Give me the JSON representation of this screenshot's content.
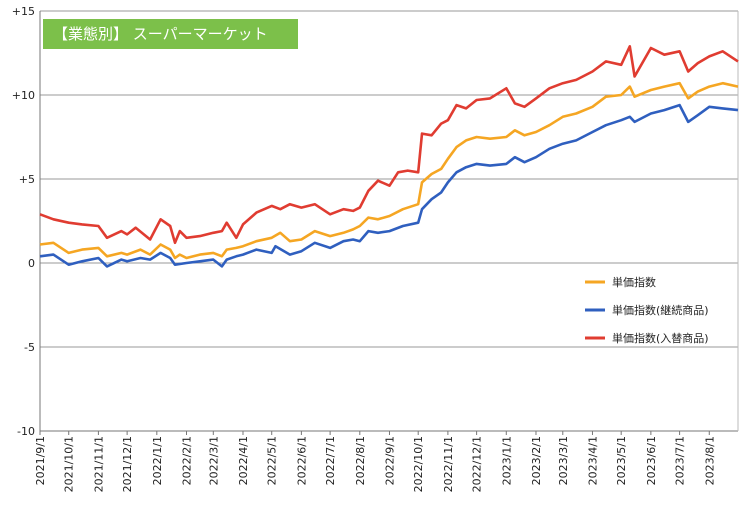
{
  "chart_data": {
    "type": "line",
    "title": "【業態別】 スーパーマーケット",
    "title_bg_color": "#7cc04a",
    "ylim": [
      -10,
      15
    ],
    "y_ticks": [
      "+15",
      "+10",
      "+5",
      "0",
      "-5",
      "-10"
    ],
    "y_tick_values": [
      15,
      10,
      5,
      0,
      -5,
      -10
    ],
    "x_ticks": [
      "2021/9/1",
      "2021/10/1",
      "2021/11/1",
      "2021/12/1",
      "2022/1/1",
      "2022/2/1",
      "2022/3/1",
      "2022/4/1",
      "2022/5/1",
      "2022/6/1",
      "2022/7/1",
      "2022/8/1",
      "2022/9/1",
      "2022/10/1",
      "2022/11/1",
      "2022/12/1",
      "2023/1/1",
      "2023/2/1",
      "2023/3/1",
      "2023/4/1",
      "2023/5/1",
      "2023/6/1",
      "2023/7/1",
      "2023/8/1"
    ],
    "x_range": [
      "2021-09-01",
      "2023-08-31"
    ],
    "grid": "horizontal",
    "legend_position": "bottom-right",
    "series": [
      {
        "name": "単価指数",
        "color": "#f5a623",
        "points": [
          [
            "2021-09-01",
            1.1
          ],
          [
            "2021-09-15",
            1.2
          ],
          [
            "2021-10-01",
            0.6
          ],
          [
            "2021-10-15",
            0.8
          ],
          [
            "2021-11-01",
            0.9
          ],
          [
            "2021-11-10",
            0.4
          ],
          [
            "2021-11-25",
            0.6
          ],
          [
            "2021-12-01",
            0.5
          ],
          [
            "2021-12-15",
            0.8
          ],
          [
            "2021-12-25",
            0.5
          ],
          [
            "2022-01-05",
            1.1
          ],
          [
            "2022-01-15",
            0.8
          ],
          [
            "2022-01-20",
            0.3
          ],
          [
            "2022-01-25",
            0.5
          ],
          [
            "2022-02-01",
            0.3
          ],
          [
            "2022-02-15",
            0.5
          ],
          [
            "2022-03-01",
            0.6
          ],
          [
            "2022-03-10",
            0.4
          ],
          [
            "2022-03-15",
            0.8
          ],
          [
            "2022-03-25",
            0.9
          ],
          [
            "2022-04-01",
            1.0
          ],
          [
            "2022-04-15",
            1.3
          ],
          [
            "2022-05-01",
            1.5
          ],
          [
            "2022-05-10",
            1.8
          ],
          [
            "2022-05-20",
            1.3
          ],
          [
            "2022-06-01",
            1.4
          ],
          [
            "2022-06-15",
            1.9
          ],
          [
            "2022-07-01",
            1.6
          ],
          [
            "2022-07-15",
            1.8
          ],
          [
            "2022-07-25",
            2.0
          ],
          [
            "2022-08-01",
            2.2
          ],
          [
            "2022-08-10",
            2.7
          ],
          [
            "2022-08-20",
            2.6
          ],
          [
            "2022-09-01",
            2.8
          ],
          [
            "2022-09-15",
            3.2
          ],
          [
            "2022-10-01",
            3.5
          ],
          [
            "2022-10-05",
            4.8
          ],
          [
            "2022-10-15",
            5.3
          ],
          [
            "2022-10-25",
            5.6
          ],
          [
            "2022-11-01",
            6.2
          ],
          [
            "2022-11-10",
            6.9
          ],
          [
            "2022-11-20",
            7.3
          ],
          [
            "2022-12-01",
            7.5
          ],
          [
            "2022-12-15",
            7.4
          ],
          [
            "2023-01-01",
            7.5
          ],
          [
            "2023-01-10",
            7.9
          ],
          [
            "2023-01-20",
            7.6
          ],
          [
            "2023-02-01",
            7.8
          ],
          [
            "2023-02-15",
            8.2
          ],
          [
            "2023-03-01",
            8.7
          ],
          [
            "2023-03-15",
            8.9
          ],
          [
            "2023-04-01",
            9.3
          ],
          [
            "2023-04-15",
            9.9
          ],
          [
            "2023-05-01",
            10.0
          ],
          [
            "2023-05-10",
            10.5
          ],
          [
            "2023-05-15",
            9.9
          ],
          [
            "2023-06-01",
            10.3
          ],
          [
            "2023-06-15",
            10.5
          ],
          [
            "2023-07-01",
            10.7
          ],
          [
            "2023-07-10",
            9.8
          ],
          [
            "2023-07-20",
            10.2
          ],
          [
            "2023-08-01",
            10.5
          ],
          [
            "2023-08-15",
            10.7
          ],
          [
            "2023-08-31",
            10.5
          ]
        ]
      },
      {
        "name": "単価指数(継続商品)",
        "color": "#2f5fbf",
        "points": [
          [
            "2021-09-01",
            0.4
          ],
          [
            "2021-09-15",
            0.5
          ],
          [
            "2021-10-01",
            -0.1
          ],
          [
            "2021-10-15",
            0.1
          ],
          [
            "2021-11-01",
            0.3
          ],
          [
            "2021-11-10",
            -0.2
          ],
          [
            "2021-11-25",
            0.2
          ],
          [
            "2021-12-01",
            0.1
          ],
          [
            "2021-12-15",
            0.3
          ],
          [
            "2021-12-25",
            0.2
          ],
          [
            "2022-01-05",
            0.6
          ],
          [
            "2022-01-15",
            0.3
          ],
          [
            "2022-01-20",
            -0.1
          ],
          [
            "2022-02-01",
            0.0
          ],
          [
            "2022-02-15",
            0.1
          ],
          [
            "2022-03-01",
            0.2
          ],
          [
            "2022-03-10",
            -0.2
          ],
          [
            "2022-03-15",
            0.2
          ],
          [
            "2022-03-25",
            0.4
          ],
          [
            "2022-04-01",
            0.5
          ],
          [
            "2022-04-15",
            0.8
          ],
          [
            "2022-05-01",
            0.6
          ],
          [
            "2022-05-05",
            1.0
          ],
          [
            "2022-05-20",
            0.5
          ],
          [
            "2022-06-01",
            0.7
          ],
          [
            "2022-06-15",
            1.2
          ],
          [
            "2022-07-01",
            0.9
          ],
          [
            "2022-07-15",
            1.3
          ],
          [
            "2022-07-25",
            1.4
          ],
          [
            "2022-08-01",
            1.3
          ],
          [
            "2022-08-10",
            1.9
          ],
          [
            "2022-08-20",
            1.8
          ],
          [
            "2022-09-01",
            1.9
          ],
          [
            "2022-09-15",
            2.2
          ],
          [
            "2022-10-01",
            2.4
          ],
          [
            "2022-10-05",
            3.2
          ],
          [
            "2022-10-15",
            3.8
          ],
          [
            "2022-10-25",
            4.2
          ],
          [
            "2022-11-01",
            4.8
          ],
          [
            "2022-11-10",
            5.4
          ],
          [
            "2022-11-20",
            5.7
          ],
          [
            "2022-12-01",
            5.9
          ],
          [
            "2022-12-15",
            5.8
          ],
          [
            "2023-01-01",
            5.9
          ],
          [
            "2023-01-10",
            6.3
          ],
          [
            "2023-01-20",
            6.0
          ],
          [
            "2023-02-01",
            6.3
          ],
          [
            "2023-02-15",
            6.8
          ],
          [
            "2023-03-01",
            7.1
          ],
          [
            "2023-03-15",
            7.3
          ],
          [
            "2023-04-01",
            7.8
          ],
          [
            "2023-04-15",
            8.2
          ],
          [
            "2023-05-01",
            8.5
          ],
          [
            "2023-05-10",
            8.7
          ],
          [
            "2023-05-15",
            8.4
          ],
          [
            "2023-06-01",
            8.9
          ],
          [
            "2023-06-15",
            9.1
          ],
          [
            "2023-07-01",
            9.4
          ],
          [
            "2023-07-10",
            8.4
          ],
          [
            "2023-07-20",
            8.8
          ],
          [
            "2023-08-01",
            9.3
          ],
          [
            "2023-08-15",
            9.2
          ],
          [
            "2023-08-31",
            9.1
          ]
        ]
      },
      {
        "name": "単価指数(入替商品)",
        "color": "#e03c31",
        "points": [
          [
            "2021-09-01",
            2.9
          ],
          [
            "2021-09-15",
            2.6
          ],
          [
            "2021-10-01",
            2.4
          ],
          [
            "2021-10-15",
            2.3
          ],
          [
            "2021-11-01",
            2.2
          ],
          [
            "2021-11-10",
            1.5
          ],
          [
            "2021-11-25",
            1.9
          ],
          [
            "2021-12-01",
            1.7
          ],
          [
            "2021-12-10",
            2.1
          ],
          [
            "2021-12-25",
            1.4
          ],
          [
            "2022-01-05",
            2.6
          ],
          [
            "2022-01-15",
            2.2
          ],
          [
            "2022-01-20",
            1.2
          ],
          [
            "2022-01-25",
            1.9
          ],
          [
            "2022-02-01",
            1.5
          ],
          [
            "2022-02-15",
            1.6
          ],
          [
            "2022-03-01",
            1.8
          ],
          [
            "2022-03-10",
            1.9
          ],
          [
            "2022-03-15",
            2.4
          ],
          [
            "2022-03-25",
            1.5
          ],
          [
            "2022-04-01",
            2.3
          ],
          [
            "2022-04-15",
            3.0
          ],
          [
            "2022-05-01",
            3.4
          ],
          [
            "2022-05-10",
            3.2
          ],
          [
            "2022-05-20",
            3.5
          ],
          [
            "2022-06-01",
            3.3
          ],
          [
            "2022-06-15",
            3.5
          ],
          [
            "2022-07-01",
            2.9
          ],
          [
            "2022-07-15",
            3.2
          ],
          [
            "2022-07-25",
            3.1
          ],
          [
            "2022-08-01",
            3.3
          ],
          [
            "2022-08-10",
            4.3
          ],
          [
            "2022-08-20",
            4.9
          ],
          [
            "2022-09-01",
            4.6
          ],
          [
            "2022-09-10",
            5.4
          ],
          [
            "2022-09-20",
            5.5
          ],
          [
            "2022-10-01",
            5.4
          ],
          [
            "2022-10-05",
            7.7
          ],
          [
            "2022-10-15",
            7.6
          ],
          [
            "2022-10-25",
            8.3
          ],
          [
            "2022-11-01",
            8.5
          ],
          [
            "2022-11-10",
            9.4
          ],
          [
            "2022-11-20",
            9.2
          ],
          [
            "2022-12-01",
            9.7
          ],
          [
            "2022-12-15",
            9.8
          ],
          [
            "2023-01-01",
            10.4
          ],
          [
            "2023-01-10",
            9.5
          ],
          [
            "2023-01-20",
            9.3
          ],
          [
            "2023-02-01",
            9.8
          ],
          [
            "2023-02-15",
            10.4
          ],
          [
            "2023-03-01",
            10.7
          ],
          [
            "2023-03-15",
            10.9
          ],
          [
            "2023-04-01",
            11.4
          ],
          [
            "2023-04-15",
            12.0
          ],
          [
            "2023-05-01",
            11.8
          ],
          [
            "2023-05-10",
            12.9
          ],
          [
            "2023-05-15",
            11.1
          ],
          [
            "2023-06-01",
            12.8
          ],
          [
            "2023-06-15",
            12.4
          ],
          [
            "2023-07-01",
            12.6
          ],
          [
            "2023-07-10",
            11.4
          ],
          [
            "2023-07-20",
            11.9
          ],
          [
            "2023-08-01",
            12.3
          ],
          [
            "2023-08-15",
            12.6
          ],
          [
            "2023-08-31",
            12.0
          ]
        ]
      }
    ]
  }
}
